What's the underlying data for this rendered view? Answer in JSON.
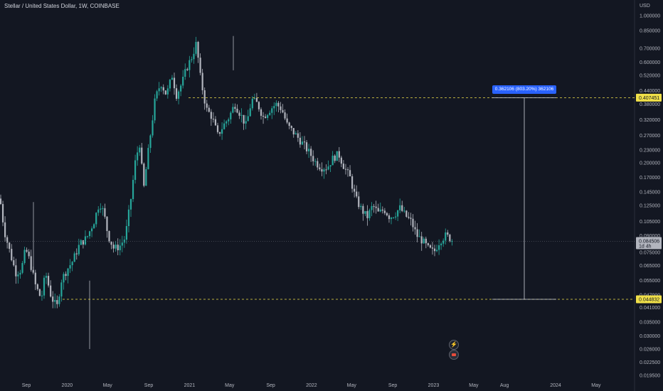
{
  "header": {
    "title": "Stellar / United States Dollar, 1W, COINBASE"
  },
  "price_axis": {
    "currency": "USD",
    "ticks": [
      {
        "label": "1.000000",
        "value": 1.0
      },
      {
        "label": "0.850000",
        "value": 0.85
      },
      {
        "label": "0.700000",
        "value": 0.7
      },
      {
        "label": "0.600000",
        "value": 0.6
      },
      {
        "label": "0.520000",
        "value": 0.52
      },
      {
        "label": "0.440000",
        "value": 0.44
      },
      {
        "label": "0.380000",
        "value": 0.38
      },
      {
        "label": "0.320000",
        "value": 0.32
      },
      {
        "label": "0.270000",
        "value": 0.27
      },
      {
        "label": "0.230000",
        "value": 0.23
      },
      {
        "label": "0.200000",
        "value": 0.2
      },
      {
        "label": "0.170000",
        "value": 0.17
      },
      {
        "label": "0.145000",
        "value": 0.145
      },
      {
        "label": "0.125000",
        "value": 0.125
      },
      {
        "label": "0.105000",
        "value": 0.105
      },
      {
        "label": "0.090000",
        "value": 0.09
      },
      {
        "label": "0.075000",
        "value": 0.075
      },
      {
        "label": "0.065000",
        "value": 0.065
      },
      {
        "label": "0.055000",
        "value": 0.055
      },
      {
        "label": "0.047000",
        "value": 0.047
      },
      {
        "label": "0.041000",
        "value": 0.041
      },
      {
        "label": "0.035000",
        "value": 0.035
      },
      {
        "label": "0.030000",
        "value": 0.03
      },
      {
        "label": "0.026000",
        "value": 0.026
      },
      {
        "label": "0.022500",
        "value": 0.0225
      },
      {
        "label": "0.019500",
        "value": 0.0195
      }
    ]
  },
  "time_axis": {
    "ticks": [
      {
        "label": "Sep",
        "date": "2019-09-01"
      },
      {
        "label": "2020",
        "date": "2020-01-01"
      },
      {
        "label": "May",
        "date": "2020-05-01"
      },
      {
        "label": "Sep",
        "date": "2020-09-01"
      },
      {
        "label": "2021",
        "date": "2021-01-01"
      },
      {
        "label": "May",
        "date": "2021-05-01"
      },
      {
        "label": "Sep",
        "date": "2021-09-01"
      },
      {
        "label": "2022",
        "date": "2022-01-01"
      },
      {
        "label": "May",
        "date": "2022-05-01"
      },
      {
        "label": "Sep",
        "date": "2022-09-01"
      },
      {
        "label": "2023",
        "date": "2023-01-01"
      },
      {
        "label": "May",
        "date": "2023-05-01"
      },
      {
        "label": "Aug",
        "date": "2023-08-01"
      },
      {
        "label": "2024",
        "date": "2024-01-01"
      },
      {
        "label": "May",
        "date": "2024-05-01"
      }
    ]
  },
  "levels": {
    "upper": {
      "label": "0.407451",
      "value": 0.407451
    },
    "lower": {
      "label": "0.044832",
      "value": 0.044832
    },
    "current": {
      "label": "0.084506",
      "countdown": "1d 4h",
      "value": 0.084506
    }
  },
  "measure": {
    "label": "0.362106 (803.20%) 362106"
  },
  "colors": {
    "up": "#26a69a",
    "down": "#b2b5be",
    "level": "#f0e049",
    "measure": "#2962ff"
  },
  "icons": {
    "lightning": "lightning-icon",
    "flag": "flag-icon"
  }
}
